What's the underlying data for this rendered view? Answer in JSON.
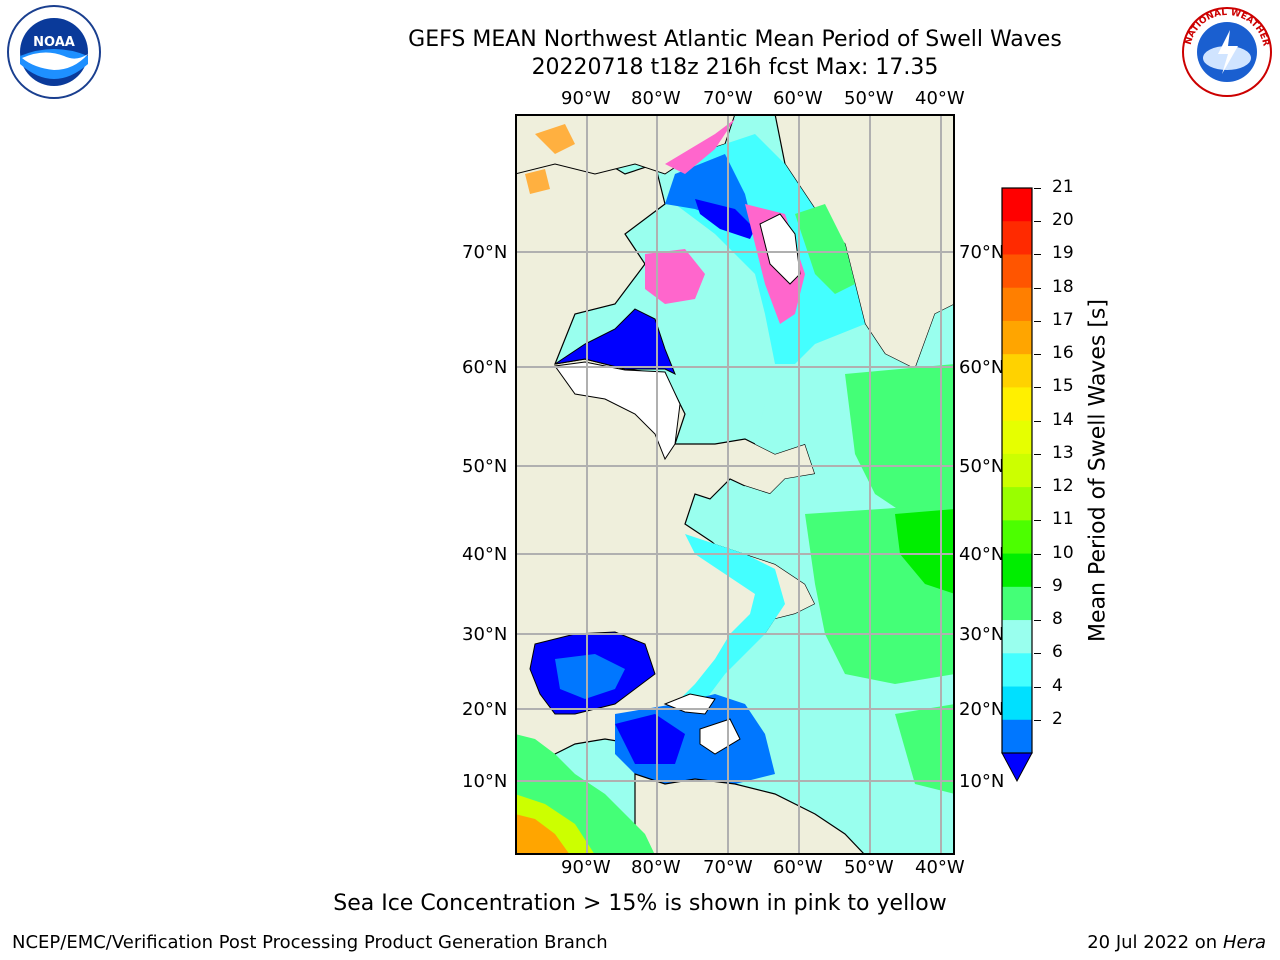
{
  "title": {
    "line1": "GEFS MEAN Northwest Atlantic Mean Period of Swell Waves",
    "line2": "20220718 t18z 216h fcst   Max: 17.35"
  },
  "logos": {
    "left": {
      "icon": "noaa-logo-icon",
      "text": "NOAA"
    },
    "right": {
      "icon": "nws-logo-icon",
      "text": "NATIONAL WEATHER SERVICE"
    }
  },
  "map": {
    "lon_labels": [
      "90°W",
      "80°W",
      "70°W",
      "60°W",
      "50°W",
      "40°W"
    ],
    "lat_labels": [
      "70°N",
      "60°N",
      "50°N",
      "40°N",
      "30°N",
      "20°N",
      "10°N"
    ]
  },
  "colorbar": {
    "title": "Mean Period of Swell Waves [s]",
    "ticks": [
      "21",
      "20",
      "19",
      "18",
      "17",
      "16",
      "15",
      "14",
      "13",
      "12",
      "11",
      "10",
      "9",
      "8",
      "6",
      "4",
      "2"
    ],
    "colors": [
      "#ff0000",
      "#ff2a00",
      "#ff5500",
      "#ff7f00",
      "#ffa500",
      "#ffd200",
      "#fff000",
      "#e6ff00",
      "#ccff00",
      "#99ff00",
      "#4cff00",
      "#00ee00",
      "#44ff77",
      "#99ffee",
      "#44ffff",
      "#00e0ff",
      "#0077ff"
    ],
    "under_color": "#0000ff"
  },
  "colors": {
    "land": "#efefdc",
    "ice_white": "#ffffff",
    "deep_blue": "#0000ff",
    "blue": "#0077ff",
    "cyan": "#00e0ff",
    "light_cyan": "#99ffee",
    "light_green": "#44ff77",
    "green": "#00ee00",
    "ice_pink": "#ff66cc",
    "ice_orange": "#ffb040",
    "grid": "#b0b0b0"
  },
  "caption": "Sea Ice Concentration > 15% is shown in pink to yellow",
  "credit_left": "NCEP/EMC/Verification Post Processing Product Generation Branch",
  "credit_right_date": "20 Jul 2022 on ",
  "credit_right_machine": "Hera"
}
